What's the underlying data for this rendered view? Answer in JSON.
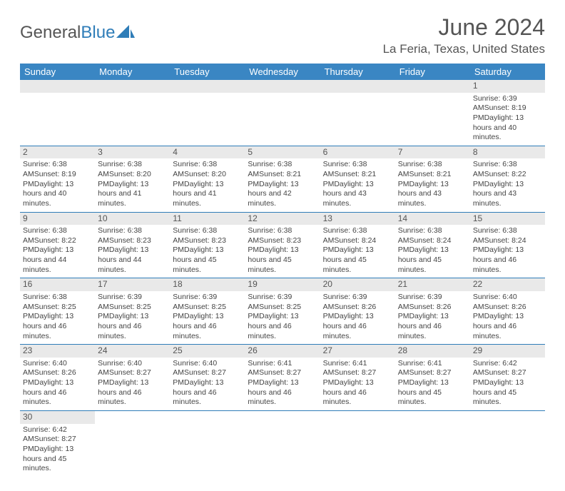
{
  "logo": {
    "text1": "General",
    "text2": "Blue",
    "icon_color": "#2f7db8"
  },
  "title": "June 2024",
  "location": "La Feria, Texas, United States",
  "colors": {
    "header_bg": "#3a86c3",
    "header_text": "#ffffff",
    "daynum_bg": "#e9e9e9",
    "border": "#2f7db8",
    "text": "#444444"
  },
  "day_headers": [
    "Sunday",
    "Monday",
    "Tuesday",
    "Wednesday",
    "Thursday",
    "Friday",
    "Saturday"
  ],
  "weeks": [
    [
      null,
      null,
      null,
      null,
      null,
      null,
      {
        "n": "1",
        "sunrise": "6:39 AM",
        "sunset": "8:19 PM",
        "daylight": "13 hours and 40 minutes."
      }
    ],
    [
      {
        "n": "2",
        "sunrise": "6:38 AM",
        "sunset": "8:19 PM",
        "daylight": "13 hours and 40 minutes."
      },
      {
        "n": "3",
        "sunrise": "6:38 AM",
        "sunset": "8:20 PM",
        "daylight": "13 hours and 41 minutes."
      },
      {
        "n": "4",
        "sunrise": "6:38 AM",
        "sunset": "8:20 PM",
        "daylight": "13 hours and 41 minutes."
      },
      {
        "n": "5",
        "sunrise": "6:38 AM",
        "sunset": "8:21 PM",
        "daylight": "13 hours and 42 minutes."
      },
      {
        "n": "6",
        "sunrise": "6:38 AM",
        "sunset": "8:21 PM",
        "daylight": "13 hours and 43 minutes."
      },
      {
        "n": "7",
        "sunrise": "6:38 AM",
        "sunset": "8:21 PM",
        "daylight": "13 hours and 43 minutes."
      },
      {
        "n": "8",
        "sunrise": "6:38 AM",
        "sunset": "8:22 PM",
        "daylight": "13 hours and 43 minutes."
      }
    ],
    [
      {
        "n": "9",
        "sunrise": "6:38 AM",
        "sunset": "8:22 PM",
        "daylight": "13 hours and 44 minutes."
      },
      {
        "n": "10",
        "sunrise": "6:38 AM",
        "sunset": "8:23 PM",
        "daylight": "13 hours and 44 minutes."
      },
      {
        "n": "11",
        "sunrise": "6:38 AM",
        "sunset": "8:23 PM",
        "daylight": "13 hours and 45 minutes."
      },
      {
        "n": "12",
        "sunrise": "6:38 AM",
        "sunset": "8:23 PM",
        "daylight": "13 hours and 45 minutes."
      },
      {
        "n": "13",
        "sunrise": "6:38 AM",
        "sunset": "8:24 PM",
        "daylight": "13 hours and 45 minutes."
      },
      {
        "n": "14",
        "sunrise": "6:38 AM",
        "sunset": "8:24 PM",
        "daylight": "13 hours and 45 minutes."
      },
      {
        "n": "15",
        "sunrise": "6:38 AM",
        "sunset": "8:24 PM",
        "daylight": "13 hours and 46 minutes."
      }
    ],
    [
      {
        "n": "16",
        "sunrise": "6:38 AM",
        "sunset": "8:25 PM",
        "daylight": "13 hours and 46 minutes."
      },
      {
        "n": "17",
        "sunrise": "6:39 AM",
        "sunset": "8:25 PM",
        "daylight": "13 hours and 46 minutes."
      },
      {
        "n": "18",
        "sunrise": "6:39 AM",
        "sunset": "8:25 PM",
        "daylight": "13 hours and 46 minutes."
      },
      {
        "n": "19",
        "sunrise": "6:39 AM",
        "sunset": "8:25 PM",
        "daylight": "13 hours and 46 minutes."
      },
      {
        "n": "20",
        "sunrise": "6:39 AM",
        "sunset": "8:26 PM",
        "daylight": "13 hours and 46 minutes."
      },
      {
        "n": "21",
        "sunrise": "6:39 AM",
        "sunset": "8:26 PM",
        "daylight": "13 hours and 46 minutes."
      },
      {
        "n": "22",
        "sunrise": "6:40 AM",
        "sunset": "8:26 PM",
        "daylight": "13 hours and 46 minutes."
      }
    ],
    [
      {
        "n": "23",
        "sunrise": "6:40 AM",
        "sunset": "8:26 PM",
        "daylight": "13 hours and 46 minutes."
      },
      {
        "n": "24",
        "sunrise": "6:40 AM",
        "sunset": "8:27 PM",
        "daylight": "13 hours and 46 minutes."
      },
      {
        "n": "25",
        "sunrise": "6:40 AM",
        "sunset": "8:27 PM",
        "daylight": "13 hours and 46 minutes."
      },
      {
        "n": "26",
        "sunrise": "6:41 AM",
        "sunset": "8:27 PM",
        "daylight": "13 hours and 46 minutes."
      },
      {
        "n": "27",
        "sunrise": "6:41 AM",
        "sunset": "8:27 PM",
        "daylight": "13 hours and 46 minutes."
      },
      {
        "n": "28",
        "sunrise": "6:41 AM",
        "sunset": "8:27 PM",
        "daylight": "13 hours and 45 minutes."
      },
      {
        "n": "29",
        "sunrise": "6:42 AM",
        "sunset": "8:27 PM",
        "daylight": "13 hours and 45 minutes."
      }
    ],
    [
      {
        "n": "30",
        "sunrise": "6:42 AM",
        "sunset": "8:27 PM",
        "daylight": "13 hours and 45 minutes."
      },
      null,
      null,
      null,
      null,
      null,
      null
    ]
  ],
  "labels": {
    "sunrise_prefix": "Sunrise: ",
    "sunset_prefix": "Sunset: ",
    "daylight_prefix": "Daylight: "
  }
}
